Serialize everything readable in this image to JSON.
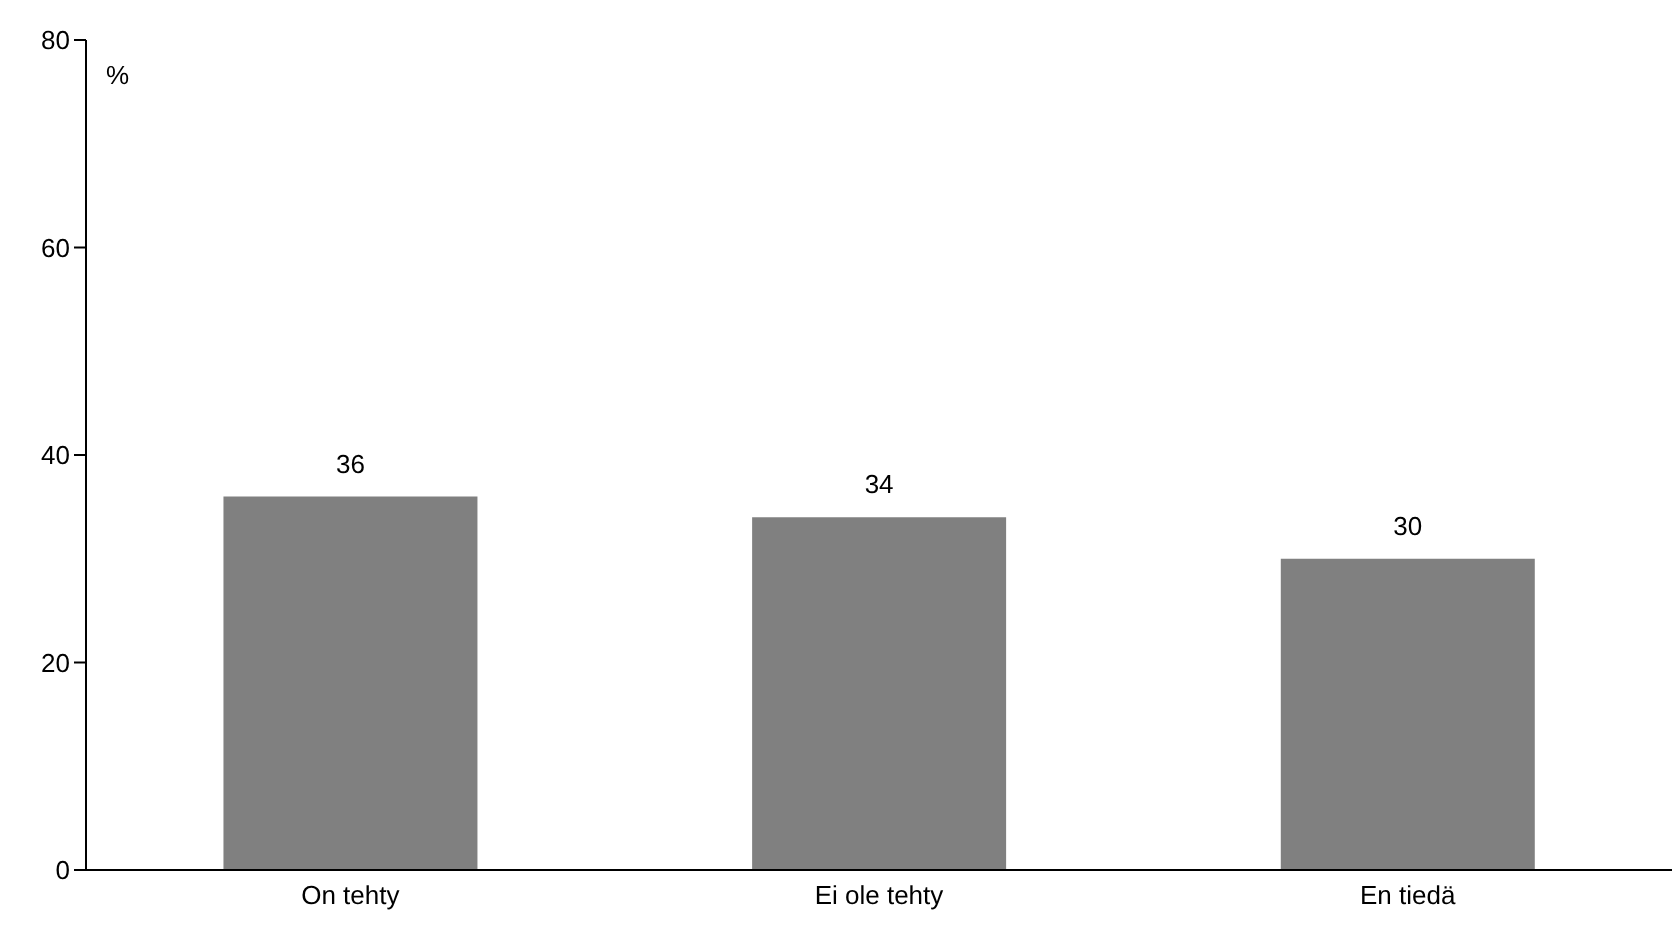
{
  "chart_data": {
    "type": "bar",
    "ylabel": "%",
    "categories": [
      "On tehty",
      "Ei ole tehty",
      "En tiedä"
    ],
    "values": [
      36,
      34,
      30
    ],
    "color": "#808080",
    "ylim": [
      0,
      80
    ],
    "yticks": [
      0,
      20,
      40,
      60,
      80
    ],
    "data_labels": true,
    "grid": false
  }
}
